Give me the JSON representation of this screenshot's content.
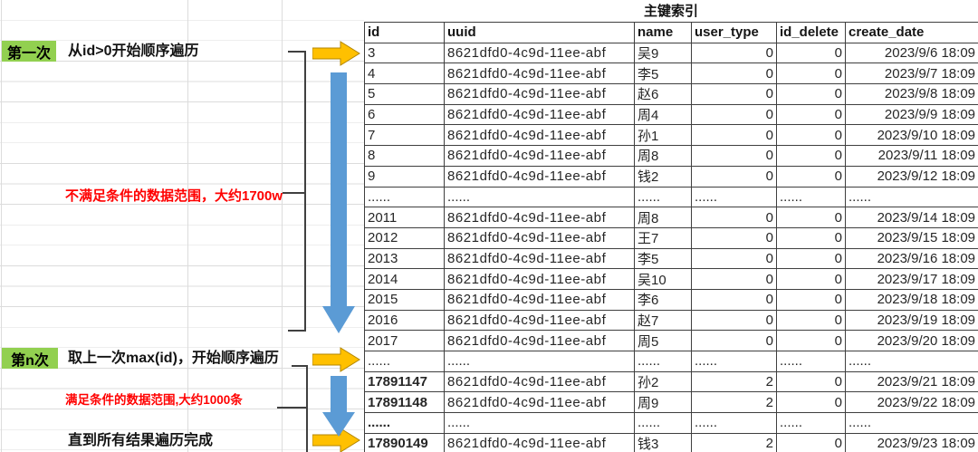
{
  "title": "主键索引",
  "annotations": {
    "step1_label": "第一次",
    "step1_text": "从id>0开始顺序遍历",
    "range1_note": "不满足条件的数据范围，大约1700w",
    "stepn_label": "第n次",
    "stepn_text": "取上一次max(id)，开始顺序遍历",
    "range2_note": "满足条件的数据范围,大约1000条",
    "final_text": "直到所有结果遍历完成"
  },
  "colors": {
    "step_highlight_green": "#92D050",
    "note_red": "#FF0000",
    "arrow_yellow": "#FFC000",
    "arrow_yellow_border": "#B38600",
    "arrow_blue": "#5B9BD5"
  },
  "icons": {
    "right_arrows": [
      "arrow-right-step1-icon",
      "arrow-right-stepn-icon",
      "arrow-right-final-icon"
    ],
    "down_arrows": [
      "arrow-down-scan1-icon",
      "arrow-down-scan2-icon"
    ]
  },
  "table": {
    "columns": [
      "id",
      "uuid",
      "name",
      "user_type",
      "id_delete",
      "create_date"
    ],
    "rows": [
      {
        "cells": [
          "3",
          "8621dfd0-4c9d-11ee-abf",
          "吴9",
          "0",
          "0",
          "2023/9/6 18:09"
        ],
        "id_red": false
      },
      {
        "cells": [
          "4",
          "8621dfd0-4c9d-11ee-abf",
          "李5",
          "0",
          "0",
          "2023/9/7 18:09"
        ],
        "id_red": false
      },
      {
        "cells": [
          "5",
          "8621dfd0-4c9d-11ee-abf",
          "赵6",
          "0",
          "0",
          "2023/9/8 18:09"
        ],
        "id_red": false
      },
      {
        "cells": [
          "6",
          "8621dfd0-4c9d-11ee-abf",
          "周4",
          "0",
          "0",
          "2023/9/9 18:09"
        ],
        "id_red": false
      },
      {
        "cells": [
          "7",
          "8621dfd0-4c9d-11ee-abf",
          "孙1",
          "0",
          "0",
          "2023/9/10 18:09"
        ],
        "id_red": false
      },
      {
        "cells": [
          "8",
          "8621dfd0-4c9d-11ee-abf",
          "周8",
          "0",
          "0",
          "2023/9/11 18:09"
        ],
        "id_red": false
      },
      {
        "cells": [
          "9",
          "8621dfd0-4c9d-11ee-abf",
          "钱2",
          "0",
          "0",
          "2023/9/12 18:09"
        ],
        "id_red": false
      },
      {
        "cells": [
          "......",
          "......",
          "......",
          "......",
          "......",
          "......"
        ],
        "id_red": false
      },
      {
        "cells": [
          "2011",
          "8621dfd0-4c9d-11ee-abf",
          "周8",
          "0",
          "0",
          "2023/9/14 18:09"
        ],
        "id_red": false
      },
      {
        "cells": [
          "2012",
          "8621dfd0-4c9d-11ee-abf",
          "王7",
          "0",
          "0",
          "2023/9/15 18:09"
        ],
        "id_red": false
      },
      {
        "cells": [
          "2013",
          "8621dfd0-4c9d-11ee-abf",
          "李5",
          "0",
          "0",
          "2023/9/16 18:09"
        ],
        "id_red": false
      },
      {
        "cells": [
          "2014",
          "8621dfd0-4c9d-11ee-abf",
          "吴10",
          "0",
          "0",
          "2023/9/17 18:09"
        ],
        "id_red": false
      },
      {
        "cells": [
          "2015",
          "8621dfd0-4c9d-11ee-abf",
          "李6",
          "0",
          "0",
          "2023/9/18 18:09"
        ],
        "id_red": false
      },
      {
        "cells": [
          "2016",
          "8621dfd0-4c9d-11ee-abf",
          "赵7",
          "0",
          "0",
          "2023/9/19 18:09"
        ],
        "id_red": false
      },
      {
        "cells": [
          "2017",
          "8621dfd0-4c9d-11ee-abf",
          "周5",
          "0",
          "0",
          "2023/9/20 18:09"
        ],
        "id_red": false
      },
      {
        "cells": [
          "......",
          "......",
          "......",
          "......",
          "......",
          "......"
        ],
        "id_red": false
      },
      {
        "cells": [
          "17891147",
          "8621dfd0-4c9d-11ee-abf",
          "孙2",
          "2",
          "0",
          "2023/9/21 18:09"
        ],
        "id_red": true
      },
      {
        "cells": [
          "17891148",
          "8621dfd0-4c9d-11ee-abf",
          "周9",
          "2",
          "0",
          "2023/9/22 18:09"
        ],
        "id_red": true
      },
      {
        "cells": [
          "......",
          "......",
          "......",
          "......",
          "......",
          "......"
        ],
        "id_red": true
      },
      {
        "cells": [
          "17890149",
          "8621dfd0-4c9d-11ee-abf",
          "钱3",
          "2",
          "0",
          "2023/9/23 18:09"
        ],
        "id_red": true
      }
    ]
  }
}
